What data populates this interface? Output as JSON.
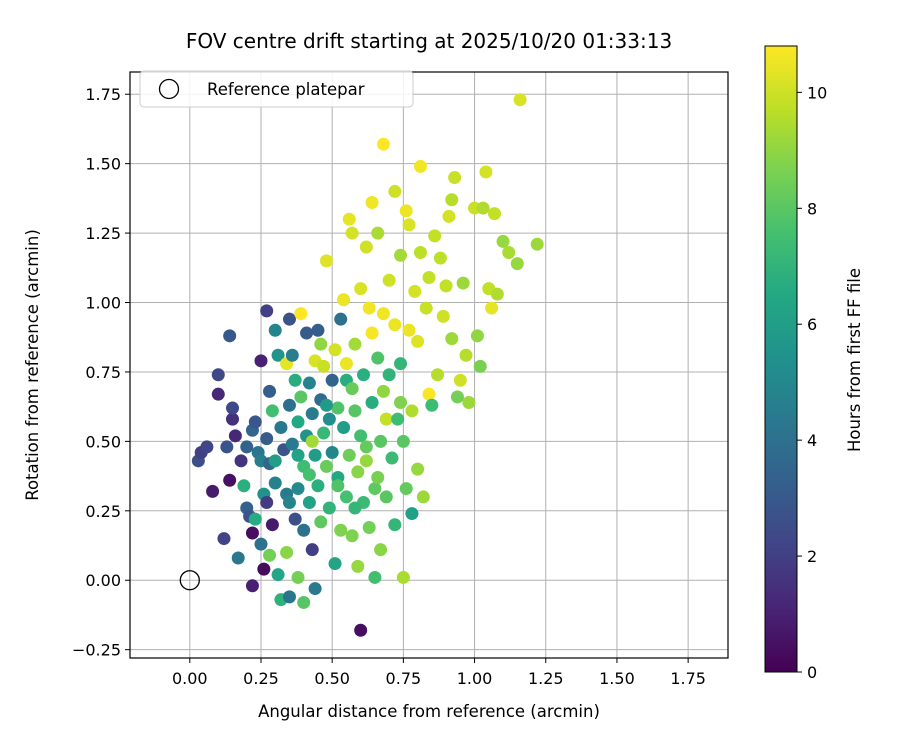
{
  "chart_data": {
    "type": "scatter",
    "title": "FOV centre drift starting at 2025/10/20 01:33:13",
    "xlabel": "Angular distance from reference (arcmin)",
    "ylabel": "Rotation from reference (arcmin)",
    "xlim": [
      -0.21,
      1.89
    ],
    "ylim": [
      -0.28,
      1.83
    ],
    "xticks": [
      0.0,
      0.25,
      0.5,
      0.75,
      1.0,
      1.25,
      1.5,
      1.75
    ],
    "xtick_labels": [
      "0.00",
      "0.25",
      "0.50",
      "0.75",
      "1.00",
      "1.25",
      "1.50",
      "1.75"
    ],
    "yticks": [
      -0.25,
      0.0,
      0.25,
      0.5,
      0.75,
      1.0,
      1.25,
      1.5,
      1.75
    ],
    "ytick_labels": [
      "−0.25",
      "0.00",
      "0.25",
      "0.50",
      "0.75",
      "1.00",
      "1.25",
      "1.50",
      "1.75"
    ],
    "grid": true,
    "legend": {
      "label": "Reference platepar",
      "placement": "upper-left"
    },
    "reference_point": {
      "x": 0.0,
      "y": 0.0
    },
    "colorbar": {
      "label": "Hours from first FF file",
      "range": [
        0,
        10.8
      ],
      "ticks": [
        0,
        2,
        4,
        6,
        8,
        10
      ],
      "tick_labels": [
        "0",
        "2",
        "4",
        "6",
        "8",
        "10"
      ],
      "colormap": "viridis"
    },
    "series": [
      {
        "name": "FOV centre",
        "points": [
          [
            0.03,
            0.43,
            2.6
          ],
          [
            0.04,
            0.46,
            2.0
          ],
          [
            0.06,
            0.48,
            2.2
          ],
          [
            0.08,
            0.32,
            0.8
          ],
          [
            0.1,
            0.67,
            1.2
          ],
          [
            0.1,
            0.74,
            2.4
          ],
          [
            0.12,
            0.15,
            2.2
          ],
          [
            0.13,
            0.48,
            2.8
          ],
          [
            0.14,
            0.88,
            3.0
          ],
          [
            0.14,
            0.36,
            0.5
          ],
          [
            0.15,
            0.58,
            1.5
          ],
          [
            0.15,
            0.62,
            2.4
          ],
          [
            0.16,
            0.52,
            1.2
          ],
          [
            0.17,
            0.08,
            4.3
          ],
          [
            0.18,
            0.43,
            1.6
          ],
          [
            0.19,
            0.34,
            6.8
          ],
          [
            0.2,
            0.48,
            3.4
          ],
          [
            0.2,
            0.26,
            3.4
          ],
          [
            0.21,
            0.23,
            2.8
          ],
          [
            0.22,
            0.54,
            3.5
          ],
          [
            0.22,
            -0.02,
            1.0
          ],
          [
            0.22,
            0.17,
            0.4
          ],
          [
            0.23,
            0.57,
            2.9
          ],
          [
            0.23,
            0.22,
            6.6
          ],
          [
            0.24,
            0.46,
            4.2
          ],
          [
            0.25,
            0.79,
            1.0
          ],
          [
            0.25,
            0.43,
            4.6
          ],
          [
            0.25,
            0.13,
            4.0
          ],
          [
            0.26,
            0.04,
            0.3
          ],
          [
            0.26,
            0.31,
            5.5
          ],
          [
            0.27,
            0.97,
            2.0
          ],
          [
            0.27,
            0.51,
            3.1
          ],
          [
            0.27,
            0.28,
            1.9
          ],
          [
            0.28,
            0.68,
            3.2
          ],
          [
            0.28,
            0.42,
            3.6
          ],
          [
            0.28,
            0.09,
            8.5
          ],
          [
            0.29,
            0.2,
            0.8
          ],
          [
            0.29,
            0.61,
            7.5
          ],
          [
            0.3,
            0.9,
            4.9
          ],
          [
            0.3,
            0.35,
            4.7
          ],
          [
            0.31,
            0.81,
            5.6
          ],
          [
            0.31,
            0.02,
            6.4
          ],
          [
            0.32,
            0.55,
            4.3
          ],
          [
            0.32,
            -0.07,
            6.9
          ],
          [
            0.33,
            0.47,
            2.8
          ],
          [
            0.34,
            0.78,
            10.4
          ],
          [
            0.34,
            0.31,
            4.4
          ],
          [
            0.34,
            0.1,
            8.9
          ],
          [
            0.35,
            0.94,
            2.7
          ],
          [
            0.35,
            0.63,
            3.9
          ],
          [
            0.35,
            -0.06,
            4.1
          ],
          [
            0.36,
            0.81,
            4.6
          ],
          [
            0.36,
            0.49,
            4.4
          ],
          [
            0.37,
            0.22,
            2.6
          ],
          [
            0.37,
            0.72,
            6.7
          ],
          [
            0.38,
            0.57,
            6.5
          ],
          [
            0.38,
            0.33,
            5.1
          ],
          [
            0.38,
            0.01,
            8.5
          ],
          [
            0.39,
            0.96,
            10.8
          ],
          [
            0.39,
            0.66,
            8.0
          ],
          [
            0.4,
            0.41,
            7.4
          ],
          [
            0.4,
            0.18,
            4.0
          ],
          [
            0.4,
            -0.08,
            7.9
          ],
          [
            0.41,
            0.89,
            3.1
          ],
          [
            0.41,
            0.52,
            5.5
          ],
          [
            0.42,
            0.71,
            4.8
          ],
          [
            0.42,
            0.28,
            6.2
          ],
          [
            0.43,
            0.6,
            4.5
          ],
          [
            0.43,
            0.11,
            2.0
          ],
          [
            0.44,
            0.79,
            10.2
          ],
          [
            0.44,
            0.45,
            5.9
          ],
          [
            0.44,
            -0.03,
            4.4
          ],
          [
            0.45,
            0.9,
            3.2
          ],
          [
            0.45,
            0.34,
            6.8
          ],
          [
            0.46,
            0.65,
            3.7
          ],
          [
            0.46,
            0.21,
            8.1
          ],
          [
            0.47,
            0.53,
            7.2
          ],
          [
            0.47,
            0.77,
            9.9
          ],
          [
            0.48,
            0.41,
            8.3
          ],
          [
            0.48,
            1.15,
            10.3
          ],
          [
            0.49,
            0.58,
            5.3
          ],
          [
            0.49,
            0.26,
            7.0
          ],
          [
            0.5,
            0.72,
            3.4
          ],
          [
            0.5,
            0.46,
            4.9
          ],
          [
            0.51,
            0.06,
            6.3
          ],
          [
            0.51,
            0.83,
            10.1
          ],
          [
            0.52,
            0.37,
            6.5
          ],
          [
            0.52,
            0.62,
            7.8
          ],
          [
            0.53,
            0.94,
            4.0
          ],
          [
            0.53,
            0.18,
            8.7
          ],
          [
            0.54,
            0.55,
            6.0
          ],
          [
            0.54,
            1.01,
            10.5
          ],
          [
            0.55,
            0.3,
            7.6
          ],
          [
            0.55,
            0.72,
            6.7
          ],
          [
            0.56,
            1.3,
            10.4
          ],
          [
            0.56,
            0.45,
            8.4
          ],
          [
            0.57,
            0.16,
            8.7
          ],
          [
            0.57,
            1.25,
            10.1
          ],
          [
            0.58,
            0.61,
            7.9
          ],
          [
            0.58,
            0.85,
            9.3
          ],
          [
            0.59,
            0.39,
            8.9
          ],
          [
            0.59,
            0.05,
            9.1
          ],
          [
            0.6,
            1.05,
            10.2
          ],
          [
            0.6,
            0.52,
            7.5
          ],
          [
            0.6,
            -0.18,
            0.4
          ],
          [
            0.61,
            0.28,
            7.3
          ],
          [
            0.61,
            0.74,
            6.8
          ],
          [
            0.62,
            1.2,
            10.0
          ],
          [
            0.62,
            0.43,
            9.1
          ],
          [
            0.63,
            0.19,
            8.5
          ],
          [
            0.63,
            0.98,
            10.6
          ],
          [
            0.64,
            1.36,
            10.6
          ],
          [
            0.64,
            0.64,
            6.7
          ],
          [
            0.65,
            0.33,
            8.1
          ],
          [
            0.65,
            0.01,
            7.5
          ],
          [
            0.66,
            1.25,
            9.4
          ],
          [
            0.66,
            0.8,
            7.8
          ],
          [
            0.67,
            0.5,
            8.0
          ],
          [
            0.67,
            0.11,
            8.9
          ],
          [
            0.68,
            1.57,
            10.8
          ],
          [
            0.68,
            0.96,
            10.6
          ],
          [
            0.69,
            0.58,
            9.8
          ],
          [
            0.69,
            0.3,
            8.0
          ],
          [
            0.7,
            1.08,
            10.0
          ],
          [
            0.7,
            0.74,
            7.0
          ],
          [
            0.71,
            0.44,
            7.3
          ],
          [
            0.72,
            1.4,
            10.0
          ],
          [
            0.72,
            0.2,
            7.1
          ],
          [
            0.72,
            0.92,
            10.5
          ],
          [
            0.73,
            0.58,
            7.4
          ],
          [
            0.74,
            1.17,
            9.3
          ],
          [
            0.74,
            0.78,
            7.1
          ],
          [
            0.75,
            0.01,
            9.4
          ],
          [
            0.75,
            0.5,
            8.0
          ],
          [
            0.76,
            1.33,
            10.5
          ],
          [
            0.76,
            0.33,
            8.2
          ],
          [
            0.77,
            1.28,
            10.2
          ],
          [
            0.77,
            0.9,
            10.5
          ],
          [
            0.78,
            0.61,
            9.5
          ],
          [
            0.78,
            0.24,
            6.1
          ],
          [
            0.79,
            1.04,
            10.1
          ],
          [
            0.8,
            0.86,
            10.3
          ],
          [
            0.8,
            0.4,
            9.1
          ],
          [
            0.81,
            1.49,
            10.6
          ],
          [
            0.81,
            1.18,
            9.7
          ],
          [
            0.82,
            0.3,
            9.2
          ],
          [
            0.83,
            0.98,
            9.9
          ],
          [
            0.84,
            0.67,
            10.7
          ],
          [
            0.84,
            1.09,
            9.8
          ],
          [
            0.85,
            0.63,
            7.4
          ],
          [
            0.86,
            1.24,
            9.8
          ],
          [
            0.87,
            0.74,
            9.6
          ],
          [
            0.88,
            1.16,
            9.7
          ],
          [
            0.89,
            0.95,
            10.0
          ],
          [
            0.9,
            1.06,
            9.8
          ],
          [
            0.91,
            1.31,
            10.1
          ],
          [
            0.92,
            0.87,
            9.2
          ],
          [
            0.92,
            1.37,
            9.6
          ],
          [
            0.93,
            1.45,
            9.9
          ],
          [
            0.94,
            0.66,
            8.5
          ],
          [
            0.95,
            0.72,
            10.0
          ],
          [
            0.96,
            1.07,
            9.2
          ],
          [
            0.97,
            0.81,
            9.6
          ],
          [
            0.98,
            0.64,
            9.2
          ],
          [
            1.0,
            1.34,
            9.9
          ],
          [
            1.01,
            0.88,
            9.0
          ],
          [
            1.02,
            0.77,
            8.6
          ],
          [
            1.03,
            1.34,
            9.5
          ],
          [
            1.04,
            1.47,
            10.1
          ],
          [
            1.05,
            1.05,
            9.8
          ],
          [
            1.06,
            0.98,
            10.4
          ],
          [
            1.07,
            1.32,
            9.8
          ],
          [
            1.08,
            1.03,
            9.5
          ],
          [
            1.1,
            1.22,
            9.1
          ],
          [
            1.12,
            1.18,
            9.4
          ],
          [
            1.15,
            1.14,
            9.1
          ],
          [
            1.16,
            1.73,
            10.2
          ],
          [
            1.22,
            1.21,
            9.2
          ],
          [
            0.43,
            0.5,
            9.3
          ],
          [
            0.46,
            0.85,
            9.0
          ],
          [
            0.52,
            0.34,
            7.8
          ],
          [
            0.38,
            0.45,
            6.2
          ],
          [
            0.57,
            0.69,
            8.3
          ],
          [
            0.66,
            0.37,
            8.6
          ],
          [
            0.62,
            0.48,
            8.2
          ],
          [
            0.48,
            0.63,
            5.8
          ],
          [
            0.35,
            0.28,
            4.9
          ],
          [
            0.42,
            0.38,
            7.6
          ],
          [
            0.58,
            0.26,
            7.1
          ],
          [
            0.3,
            0.43,
            6.0
          ],
          [
            0.68,
            0.68,
            9.0
          ],
          [
            0.74,
            0.64,
            8.7
          ],
          [
            0.55,
            0.78,
            10.5
          ],
          [
            0.64,
            0.89,
            10.7
          ]
        ]
      }
    ]
  }
}
